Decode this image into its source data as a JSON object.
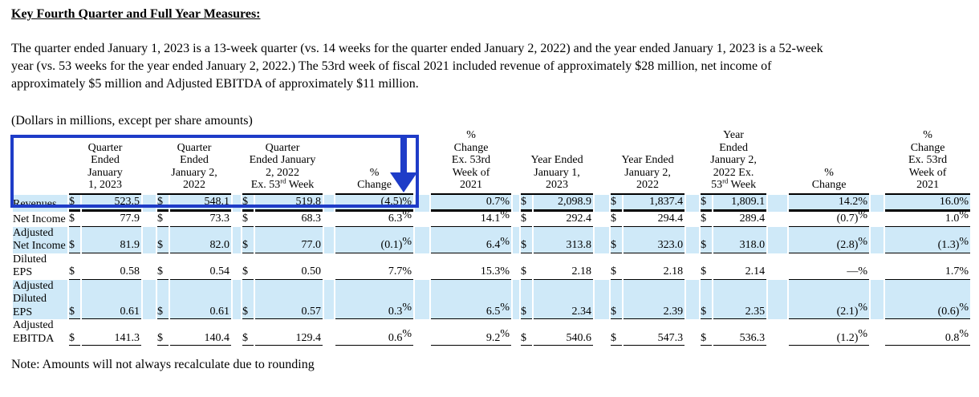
{
  "title": "Key Fourth Quarter and Full Year Measures:",
  "intro_lines": [
    "The quarter ended January 1, 2023 is a 13-week quarter (vs. 14 weeks for the quarter ended January 2, 2022) and the year ended January 1, 2023 is a 52-week",
    "year (vs. 53 weeks for the year ended January 2, 2022.) The 53rd week of fiscal 2021 included revenue of approximately $28 million, net income of",
    "approximately $5 million and Adjusted EBITDA of approximately $11 million."
  ],
  "units_note": "(Dollars in millions, except per share amounts)",
  "footnote": "Note: Amounts will not always recalculate due to rounding",
  "annotation": {
    "shape": "box-around-quarter-columns-with-down-arrow",
    "color": "#1e3cc8"
  },
  "colors": {
    "row_highlight_band": "#cfe9f8",
    "annotation_blue": "#1e3cc8"
  },
  "table": {
    "currency_symbol": "$",
    "column_headers": [
      {
        "lines": [
          "Quarter",
          "Ended",
          "January",
          "1, 2023"
        ],
        "currency": true
      },
      {
        "lines": [
          "Quarter",
          "Ended",
          "January 2,",
          "2022"
        ],
        "currency": true
      },
      {
        "lines": [
          "Quarter",
          "Ended January",
          "2, 2022",
          "Ex. 53^{rd} Week"
        ],
        "currency": true
      },
      {
        "lines": [
          "%",
          "Change"
        ],
        "currency": false
      },
      {
        "lines": [
          "%",
          "Change",
          "Ex. 53rd",
          "Week of",
          "2021"
        ],
        "currency": false
      },
      {
        "lines": [
          "Year Ended",
          "January 1,",
          "2023"
        ],
        "currency": true
      },
      {
        "lines": [
          "Year Ended",
          "January 2,",
          "2022"
        ],
        "currency": true
      },
      {
        "lines": [
          "Year",
          "Ended",
          "January 2,",
          "2022 Ex.",
          "53^{rd} Week"
        ],
        "currency": true
      },
      {
        "lines": [
          "%",
          "Change"
        ],
        "currency": false
      },
      {
        "lines": [
          "%",
          "Change",
          "Ex. 53rd",
          "Week of",
          "2021"
        ],
        "currency": false
      }
    ],
    "rows": [
      {
        "label": "Revenues",
        "banded": true,
        "thick_rule": true,
        "sup_pct": false,
        "values": [
          "523.5",
          "548.1",
          "519.8",
          "(4.5)%",
          "0.7%",
          "2,098.9",
          "1,837.4",
          "1,809.1",
          "14.2%",
          "16.0%"
        ]
      },
      {
        "label": "Net Income",
        "banded": false,
        "thick_rule": false,
        "sup_pct": true,
        "values": [
          "77.9",
          "73.3",
          "68.3",
          "6.3%",
          "14.1%",
          "292.4",
          "294.4",
          "289.4",
          "(0.7)%",
          "1.0%"
        ]
      },
      {
        "label": "Adjusted Net Income",
        "banded": true,
        "thick_rule": false,
        "sup_pct": true,
        "values": [
          "81.9",
          "82.0",
          "77.0",
          "(0.1)%",
          "6.4%",
          "313.8",
          "323.0",
          "318.0",
          "(2.8)%",
          "(1.3)%"
        ]
      },
      {
        "label": "Diluted EPS",
        "banded": false,
        "thick_rule": false,
        "sup_pct": false,
        "values": [
          "0.58",
          "0.54",
          "0.50",
          "7.7%",
          "15.3%",
          "2.18",
          "2.18",
          "2.14",
          "—%",
          "1.7%"
        ]
      },
      {
        "label": "Adjusted Diluted EPS",
        "banded": true,
        "thick_rule": false,
        "sup_pct": true,
        "values": [
          "0.61",
          "0.61",
          "0.57",
          "0.3%",
          "6.5%",
          "2.34",
          "2.39",
          "2.35",
          "(2.1)%",
          "(0.6)%"
        ]
      },
      {
        "label": "Adjusted EBITDA",
        "banded": false,
        "thick_rule": false,
        "sup_pct": true,
        "values": [
          "141.3",
          "140.4",
          "129.4",
          "0.6%",
          "9.2%",
          "540.6",
          "547.3",
          "536.3",
          "(1.2)%",
          "0.8%"
        ]
      }
    ]
  }
}
